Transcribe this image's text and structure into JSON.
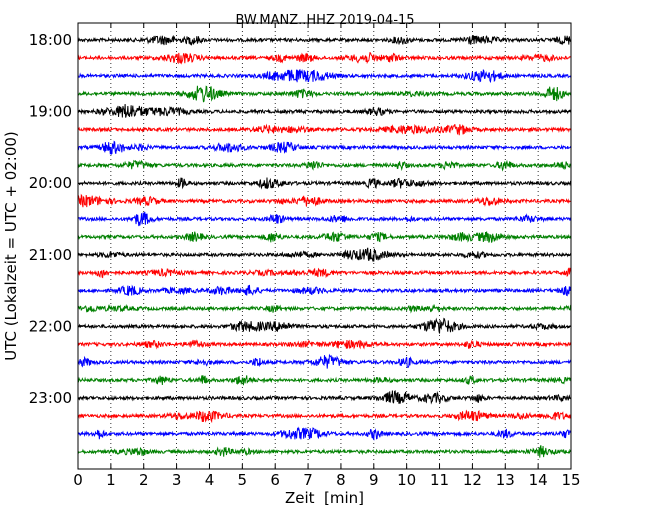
{
  "chart_data": {
    "type": "line",
    "title": "BW.MANZ..HHZ 2019-04-15",
    "xlabel": "Zeit  [min]",
    "ylabel": "UTC (Lokalzeit = UTC + 02:00)",
    "xlim": [
      0,
      15
    ],
    "x_ticks": [
      "0",
      "1",
      "2",
      "3",
      "4",
      "5",
      "6",
      "7",
      "8",
      "9",
      "10",
      "11",
      "12",
      "13",
      "14",
      "15"
    ],
    "y_ticks": [
      "18:00",
      "19:00",
      "20:00",
      "21:00",
      "22:00",
      "23:00"
    ],
    "grid": "vertical dotted lines at each minute",
    "trace_interval_minutes": 15,
    "trace_colors": [
      "#000000",
      "#ff0000",
      "#0000ff",
      "#008000"
    ],
    "series": [
      {
        "start": "18:00",
        "color": "#000000"
      },
      {
        "start": "18:15",
        "color": "#ff0000"
      },
      {
        "start": "18:30",
        "color": "#0000ff"
      },
      {
        "start": "18:45",
        "color": "#008000"
      },
      {
        "start": "19:00",
        "color": "#000000"
      },
      {
        "start": "19:15",
        "color": "#ff0000"
      },
      {
        "start": "19:30",
        "color": "#0000ff"
      },
      {
        "start": "19:45",
        "color": "#008000"
      },
      {
        "start": "20:00",
        "color": "#000000"
      },
      {
        "start": "20:15",
        "color": "#ff0000"
      },
      {
        "start": "20:30",
        "color": "#0000ff"
      },
      {
        "start": "20:45",
        "color": "#008000"
      },
      {
        "start": "21:00",
        "color": "#000000"
      },
      {
        "start": "21:15",
        "color": "#ff0000"
      },
      {
        "start": "21:30",
        "color": "#0000ff"
      },
      {
        "start": "21:45",
        "color": "#008000"
      },
      {
        "start": "22:00",
        "color": "#000000"
      },
      {
        "start": "22:15",
        "color": "#ff0000"
      },
      {
        "start": "22:30",
        "color": "#0000ff"
      },
      {
        "start": "22:45",
        "color": "#008000"
      },
      {
        "start": "23:00",
        "color": "#000000"
      },
      {
        "start": "23:15",
        "color": "#ff0000"
      },
      {
        "start": "23:30",
        "color": "#0000ff"
      },
      {
        "start": "23:45",
        "color": "#008000"
      }
    ]
  }
}
